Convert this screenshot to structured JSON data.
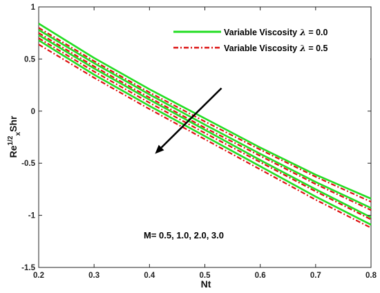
{
  "chart_data": {
    "type": "line",
    "xlabel": "Nt",
    "ylabel": "Re^1/2_x Shr",
    "ylabel_parts": {
      "base": "Re",
      "sup": "1/2",
      "sub": "x",
      "rest": "Shr"
    },
    "xlim": [
      0.2,
      0.8
    ],
    "ylim": [
      -1.5,
      1
    ],
    "xticks": [
      0.2,
      0.3,
      0.4,
      0.5,
      0.6,
      0.7,
      0.8
    ],
    "xtick_labels": [
      "0.2",
      "0.3",
      "0.4",
      "0.5",
      "0.6",
      "0.7",
      "0.8"
    ],
    "yticks": [
      -1.5,
      -1,
      -0.5,
      0,
      0.5,
      1
    ],
    "ytick_labels": [
      "-1.5",
      "-1",
      "-0.5",
      "0",
      "0.5",
      "1"
    ],
    "grid": false,
    "legend_position": "top-right",
    "legend": [
      {
        "label_text": "Variable Viscosity",
        "symbol": "λ",
        "value_text": " = 0.0",
        "color": "#22dd22",
        "style": "solid"
      },
      {
        "label_text": "Variable Viscosity",
        "symbol": "λ",
        "value_text": " = 0.5",
        "color": "#dd1111",
        "style": "dashdot"
      }
    ],
    "annotation": "M= 0.5, 1.0, 2.0, 3.0",
    "arrow": {
      "from": [
        0.53,
        0.22
      ],
      "to": [
        0.41,
        -0.41
      ],
      "meaning": "increasing M"
    },
    "x": [
      0.2,
      0.3,
      0.4,
      0.5,
      0.6,
      0.7,
      0.8
    ],
    "series": [
      {
        "group": 0,
        "M": 0.5,
        "values": [
          0.84,
          0.51,
          0.21,
          -0.07,
          -0.35,
          -0.61,
          -0.84
        ]
      },
      {
        "group": 0,
        "M": 1.0,
        "values": [
          0.78,
          0.46,
          0.16,
          -0.13,
          -0.41,
          -0.68,
          -0.93
        ]
      },
      {
        "group": 0,
        "M": 2.0,
        "values": [
          0.73,
          0.41,
          0.11,
          -0.18,
          -0.47,
          -0.75,
          -1.02
        ]
      },
      {
        "group": 0,
        "M": 3.0,
        "values": [
          0.68,
          0.35,
          0.05,
          -0.24,
          -0.53,
          -0.82,
          -1.09
        ]
      },
      {
        "group": 1,
        "M": 0.5,
        "values": [
          0.8,
          0.48,
          0.18,
          -0.1,
          -0.37,
          -0.63,
          -0.87
        ]
      },
      {
        "group": 1,
        "M": 1.0,
        "values": [
          0.75,
          0.43,
          0.13,
          -0.16,
          -0.43,
          -0.7,
          -0.95
        ]
      },
      {
        "group": 1,
        "M": 2.0,
        "values": [
          0.7,
          0.38,
          0.08,
          -0.21,
          -0.49,
          -0.77,
          -1.04
        ]
      },
      {
        "group": 1,
        "M": 3.0,
        "values": [
          0.64,
          0.32,
          0.02,
          -0.27,
          -0.56,
          -0.85,
          -1.12
        ]
      }
    ]
  }
}
